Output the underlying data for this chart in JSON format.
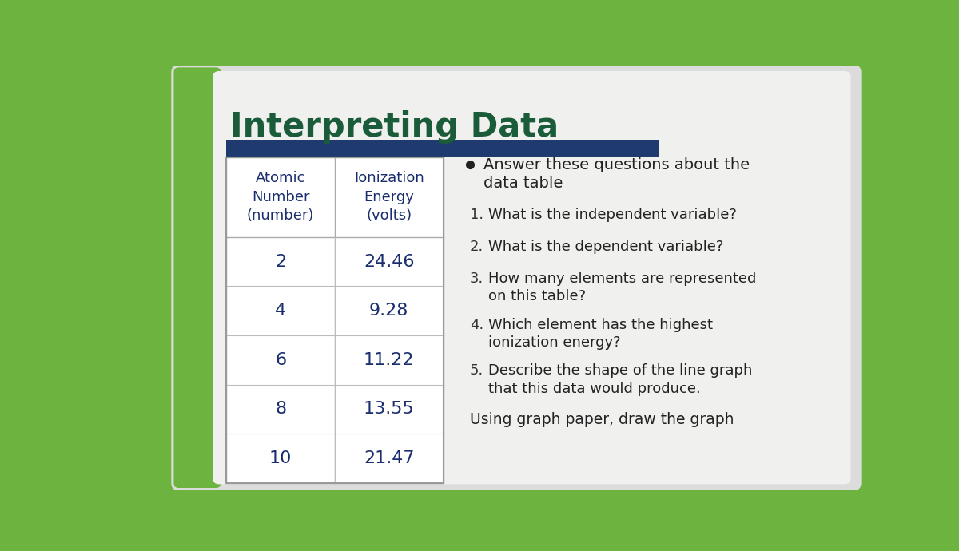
{
  "title": "Interpreting Data",
  "title_color": "#1a5c3a",
  "bg_outer": "#6db33f",
  "bg_card": "#e8e8e8",
  "bg_inner": "#f2f2f0",
  "table_header_bg": "#1e3a6e",
  "table_text_color": "#1a2e6e",
  "table_col1_header": "Atomic\nNumber\n(number)",
  "table_col2_header": "Ionization\nEnergy\n(volts)",
  "table_rows": [
    [
      "2",
      "24.46"
    ],
    [
      "4",
      "9.28"
    ],
    [
      "6",
      "11.22"
    ],
    [
      "8",
      "13.55"
    ],
    [
      "10",
      "21.47"
    ]
  ],
  "bullet_text": "Answer these questions about the\ndata table",
  "questions": [
    "What is the independent variable?",
    "What is the dependent variable?",
    "How many elements are represented\non this table?",
    "Which element has the highest\nionization energy?",
    "Describe the shape of the line graph\nthat this data would produce."
  ],
  "footer": "Using graph paper, draw the graph"
}
